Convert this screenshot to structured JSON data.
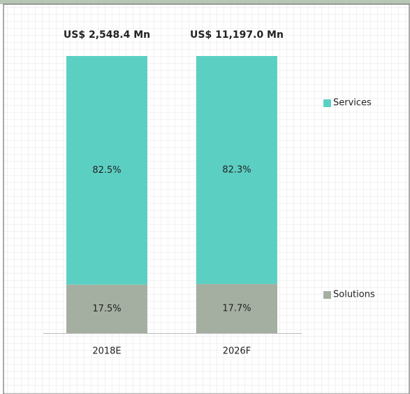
{
  "chart_data": {
    "type": "stacked_bar_100",
    "categories": [
      "2018E",
      "2026F"
    ],
    "annotations": [
      "US$ 2,548.4 Mn",
      "US$ 11,197.0 Mn"
    ],
    "series": [
      {
        "name": "Solutions",
        "color": "#a4afa1",
        "values": [
          17.5,
          17.7
        ],
        "value_labels": [
          "17.5%",
          "17.7%"
        ]
      },
      {
        "name": "Services",
        "color": "#5ccfc3",
        "values": [
          82.5,
          82.3
        ],
        "value_labels": [
          "82.5%",
          "82.3%"
        ]
      }
    ],
    "ylim": [
      0,
      100
    ]
  }
}
